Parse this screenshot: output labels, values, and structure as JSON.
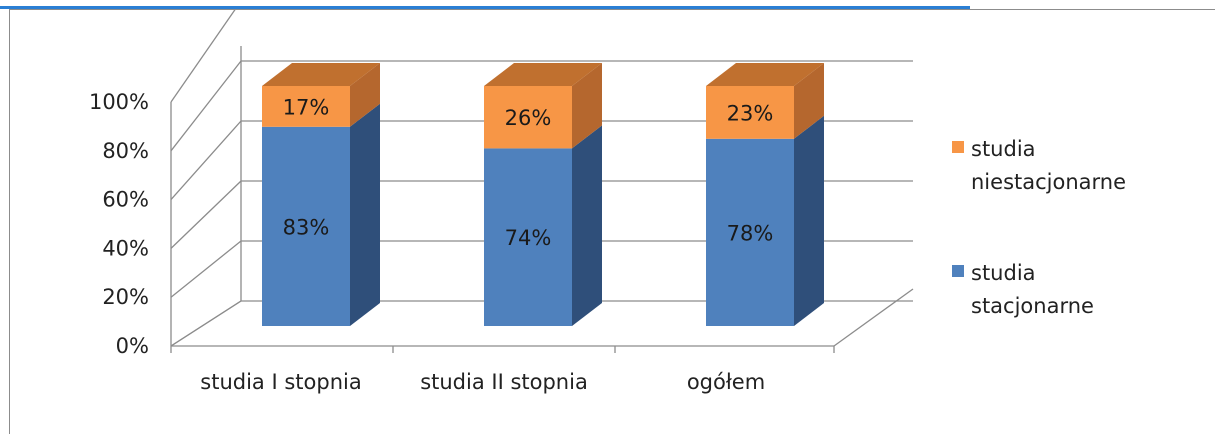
{
  "colors": {
    "stacjonarne_front": "#4f81bd",
    "stacjonarne_side": "#2f4f7a",
    "niestacjonarne_front": "#f79646",
    "niestacjonarne_side": "#b5672e",
    "niestacjonarne_top": "#c0702f",
    "topline": "#2a7fd4"
  },
  "chart_data": {
    "type": "bar",
    "stacked": true,
    "three_d": true,
    "categories": [
      "studia I stopnia",
      "studia II stopnia",
      "ogółem"
    ],
    "series": [
      {
        "name": "studia stacjonarne",
        "values": [
          83,
          74,
          78
        ],
        "labels": [
          "83%",
          "74%",
          "78%"
        ]
      },
      {
        "name": "studia niestacjonarne",
        "values": [
          17,
          26,
          23
        ],
        "labels": [
          "17%",
          "26%",
          "23%"
        ]
      }
    ],
    "ylim": [
      0,
      100
    ],
    "yticks": [
      "0%",
      "20%",
      "40%",
      "60%",
      "80%",
      "100%"
    ],
    "grid": true,
    "legend": "right"
  }
}
